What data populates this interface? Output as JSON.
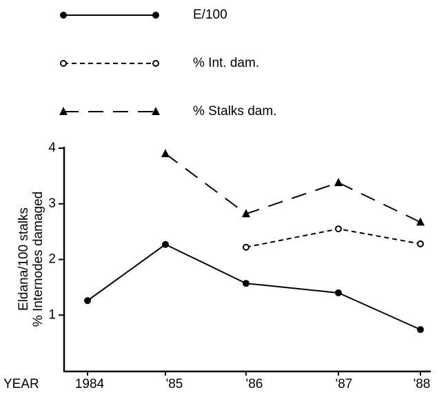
{
  "chart_data": {
    "type": "line",
    "x_label": "YEAR",
    "y_label": [
      "Eldana/100 stalks",
      "% Internodes damaged"
    ],
    "categories": [
      "1984",
      "'85",
      "'86",
      "'87",
      "'88"
    ],
    "series": [
      {
        "name": "E/100",
        "color": "#000000",
        "line_style": "solid",
        "marker": "filled-circle",
        "values": [
          1.26,
          2.27,
          1.57,
          1.4,
          0.74
        ]
      },
      {
        "name": "% Int. dam.",
        "color": "#000000",
        "line_style": "short-dash",
        "marker": "open-circle",
        "values": [
          null,
          null,
          2.22,
          2.55,
          2.28
        ]
      },
      {
        "name": "% Stalks dam.",
        "color": "#000000",
        "line_style": "long-dash",
        "marker": "triangle",
        "values": [
          null,
          3.9,
          2.82,
          3.38,
          2.67
        ]
      }
    ],
    "ylim": [
      0,
      4
    ],
    "yticks": [
      1,
      2,
      3,
      4
    ],
    "grid": false,
    "legend": "top"
  }
}
